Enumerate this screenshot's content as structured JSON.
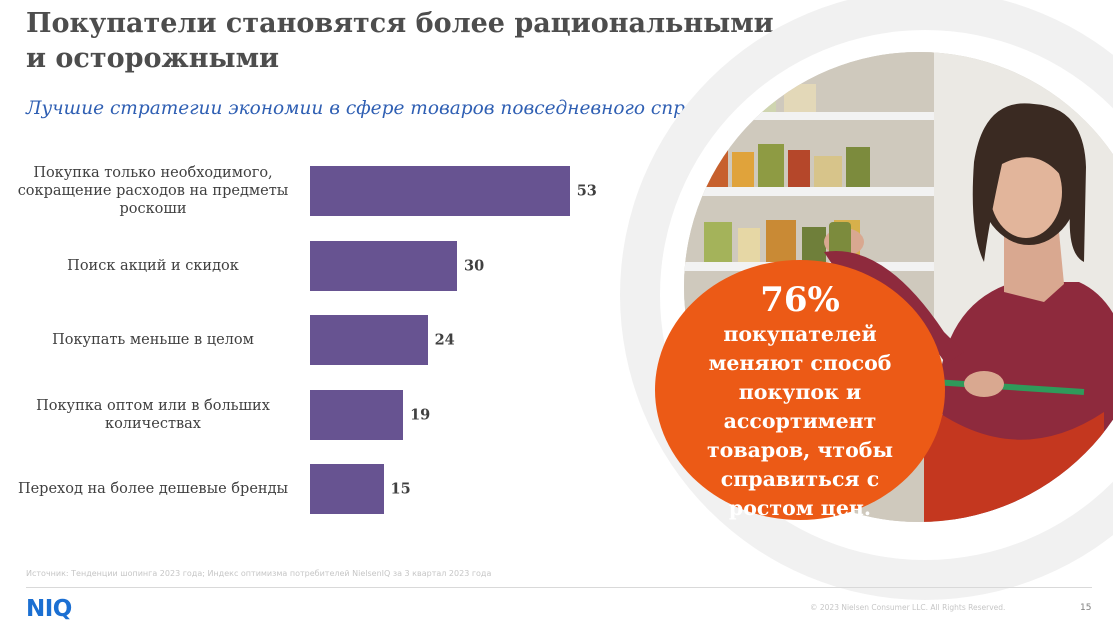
{
  "title": "Покупатели становятся более рациональными и осторожными",
  "subtitle": "Лучшие стратегии экономии в сфере товаров повседневного спроса",
  "chart_data": {
    "type": "bar",
    "orientation": "horizontal",
    "categories": [
      "Покупка только необходимого, сокращение расходов на предметы роскоши",
      "Поиск акций и скидок",
      "Покупать меньше в целом",
      "Покупка оптом или в больших количествах",
      "Переход на более дешевые бренды"
    ],
    "values": [
      53,
      30,
      24,
      19,
      15
    ],
    "bar_color": "#675391",
    "grid": false,
    "legend": "none"
  },
  "callout": {
    "number": "76%",
    "text": "покупателей меняют способ покупок и ассортимент товаров, чтобы справиться с ростом цен.",
    "color": "#ec5a16"
  },
  "photo": {
    "description_icon": "shopper-photo"
  },
  "footer": {
    "source": "Источник: Тенденции шопинга 2023 года; Индекс оптимизма потребителей NielsenIQ за 3 квартал 2023 года",
    "logo": "NIQ",
    "logo_color": "#1b6fd2",
    "copyright": "© 2023 Nielsen Consumer LLC. All Rights Reserved.",
    "page_number": "15"
  }
}
